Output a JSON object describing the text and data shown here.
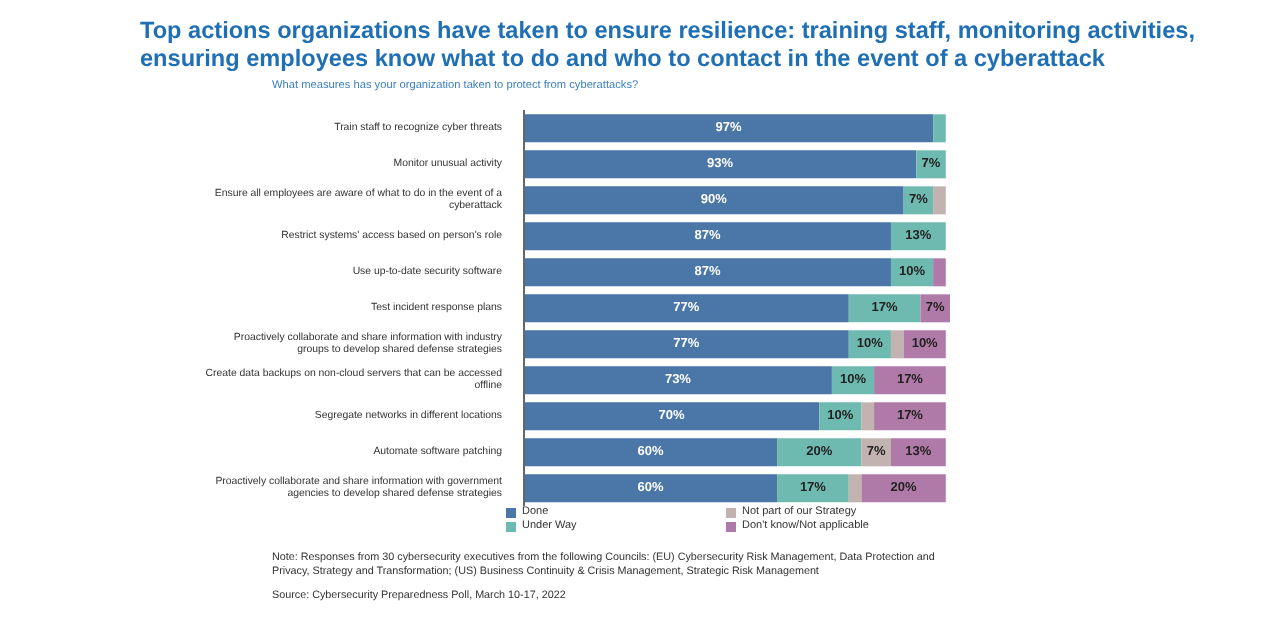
{
  "chart_data": {
    "type": "bar",
    "orientation": "horizontal",
    "stacked": true,
    "title": "Top actions organizations have taken to ensure resilience: training staff, monitoring activities, ensuring employees know what to do and who to contact in the event of a cyberattack",
    "subtitle": "What measures has your organization taken to protect from cyberattacks?",
    "categories": [
      "Train staff to recognize cyber threats",
      "Monitor unusual activity",
      "Ensure all employees are aware of what to do in the event of a cyberattack",
      "Restrict systems' access based on person's role",
      "Use up-to-date security software",
      "Test incident response plans",
      "Proactively collaborate and share information with industry groups to develop shared defense strategies",
      "Create data backups on non-cloud servers that can be accessed offline",
      "Segregate networks in different locations",
      "Automate software patching",
      "Proactively collaborate and share information with government agencies to develop shared defense strategies"
    ],
    "xlim": [
      0,
      101
    ],
    "series": [
      {
        "name": "Done",
        "color": "#4a76a8",
        "values": [
          97,
          93,
          90,
          87,
          87,
          77,
          77,
          73,
          70,
          60,
          60
        ],
        "value_labels": [
          "97%",
          "93%",
          "90%",
          "87%",
          "87%",
          "77%",
          "77%",
          "73%",
          "70%",
          "60%",
          "60%"
        ]
      },
      {
        "name": "Under Way",
        "color": "#6fbab0",
        "values": [
          3,
          7,
          7,
          13,
          10,
          17,
          10,
          10,
          10,
          20,
          17
        ],
        "value_labels": [
          null,
          "7%",
          "7%",
          "13%",
          "10%",
          "17%",
          "10%",
          "10%",
          "10%",
          "20%",
          "17%"
        ]
      },
      {
        "name": "Not part of our Strategy",
        "color": "#c2b3b0",
        "values": [
          0,
          0,
          3,
          0,
          0,
          0,
          3,
          0,
          3,
          7,
          3
        ],
        "value_labels": [
          null,
          null,
          null,
          null,
          null,
          null,
          null,
          null,
          null,
          "7%",
          null
        ]
      },
      {
        "name": "Don't know/Not applicable",
        "color": "#b07aa8",
        "values": [
          0,
          0,
          0,
          0,
          3,
          7,
          10,
          17,
          17,
          13,
          20
        ],
        "value_labels": [
          null,
          null,
          null,
          null,
          null,
          "7%",
          "10%",
          "17%",
          "17%",
          "13%",
          "20%"
        ]
      }
    ],
    "legend": "bottom",
    "annotations": [
      "Note: Responses from 30 cybersecurity executives from the following Councils: (EU) Cybersecurity Risk Management, Data Protection and Privacy, Strategy and Transformation; (US) Business Continuity & Crisis Management, Strategic Risk Management",
      "Source: Cybersecurity Preparedness Poll, March 10-17, 2022"
    ]
  }
}
